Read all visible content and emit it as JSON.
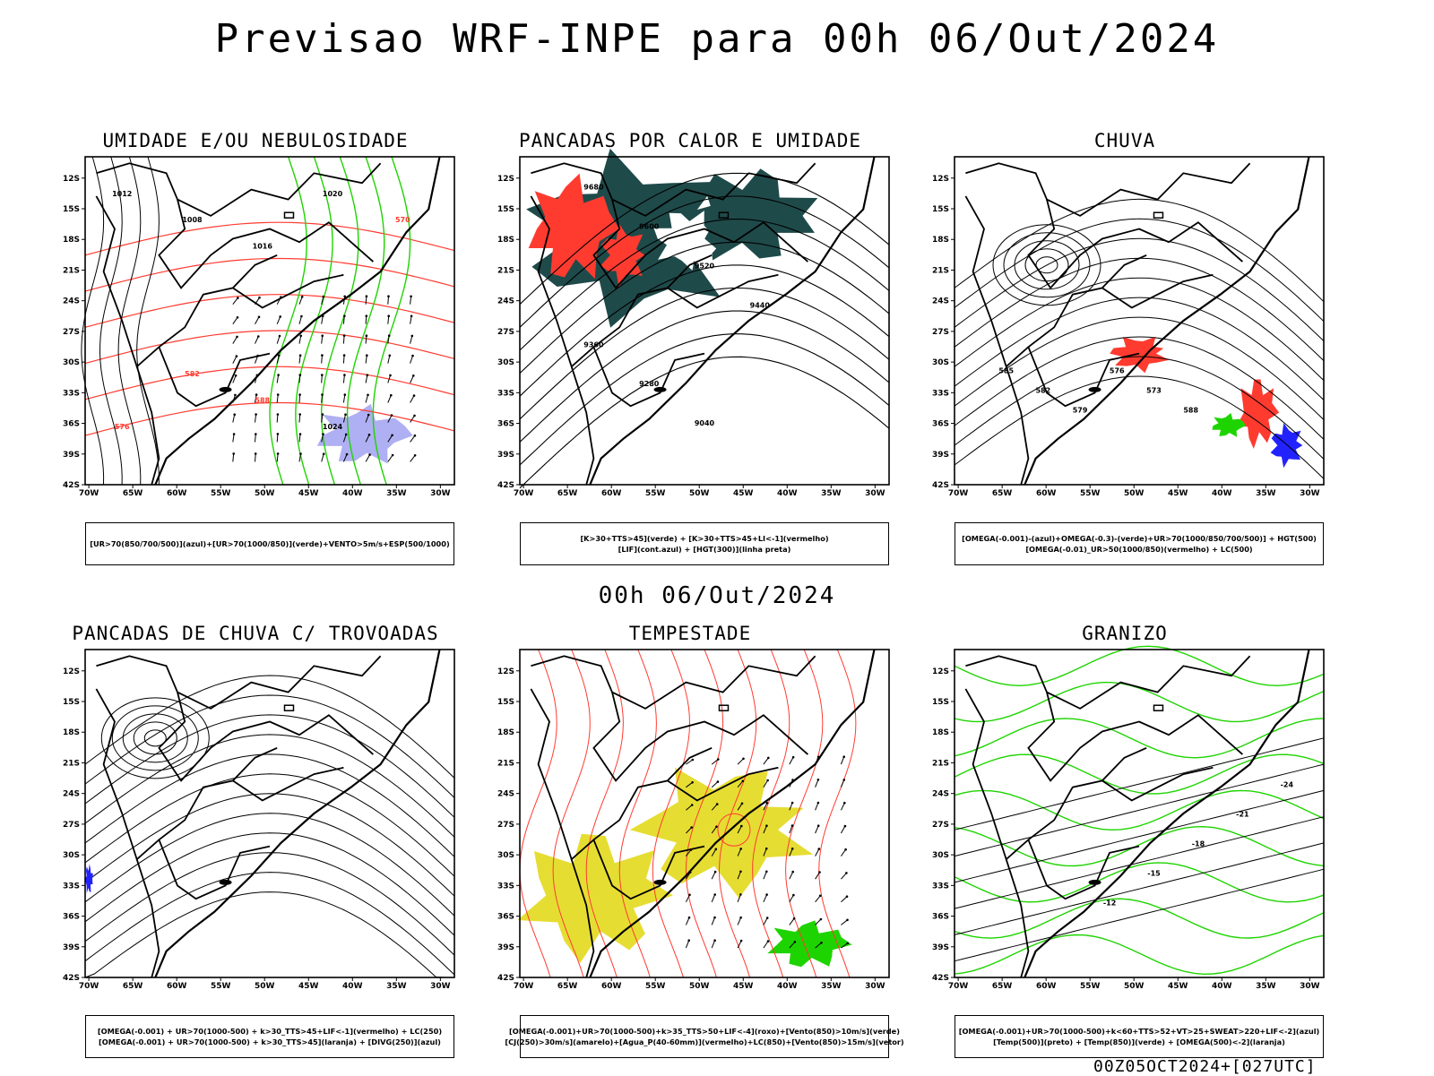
{
  "header": {
    "title": "Previsao WRF-INPE  para 00h 06/Out/2024"
  },
  "mid_date": "00h 06/Out/2024",
  "footer": {
    "code": "00Z05OCT2024+[027UTC]"
  },
  "axes": {
    "lat_labels": [
      "12S",
      "15S",
      "18S",
      "21S",
      "24S",
      "27S",
      "30S",
      "33S",
      "36S",
      "39S",
      "42S"
    ],
    "lon_labels": [
      "70W",
      "65W",
      "60W",
      "55W",
      "50W",
      "45W",
      "40W",
      "35W",
      "30W"
    ]
  },
  "colors": {
    "red": "#ff3b30",
    "green": "#1ed400",
    "blue": "#2222ff",
    "teal": "#1f4a4a",
    "yellow": "#e6dd33",
    "purple": "#9b9bf0",
    "black": "#000000"
  },
  "panels": [
    {
      "title": "UMIDADE E/OU NEBULOSIDADE",
      "legend": [
        "[UR>70(850/700/500)](azul)+[UR>70(1000/850)](verde)+VENTO>5m/s+ESP(500/1000)"
      ],
      "labels": [
        "1012",
        "1008",
        "1016",
        "1020",
        "570",
        "576",
        "582",
        "588",
        "1024"
      ]
    },
    {
      "title": "PANCADAS POR CALOR E UMIDADE",
      "legend": [
        "[K>30+TTS>45](verde) + [K>30+TTS>45+LI<-1](vermelho)",
        "[LIF](cont.azul) + [HGT(300)](linha preta)"
      ],
      "labels": [
        "9680",
        "9600",
        "9520",
        "9440",
        "9360",
        "9280",
        "9040"
      ]
    },
    {
      "title": "CHUVA",
      "legend": [
        "[OMEGA(-0.001)-(azul)+OMEGA(-0.3)-(verde)+UR>70(1000/850/700/500)] + HGT(500)",
        "[OMEGA(-0.01)_UR>50(1000/850)(vermelho) + LC(500)"
      ],
      "labels": [
        "585",
        "582",
        "579",
        "576",
        "573",
        "588"
      ]
    },
    {
      "title": "PANCADAS DE CHUVA C/ TROVOADAS",
      "legend": [
        "[OMEGA(-0.001) + UR>70(1000-500) + k>30_TTS>45+LIF<-1](vermelho) + LC(250)",
        "[OMEGA(-0.001) + UR>70(1000-500) + k>30_TTS>45](laranja) + [DIVG(250)](azul)"
      ],
      "labels": []
    },
    {
      "title": "TEMPESTADE",
      "legend": [
        "[OMEGA(-0.001)+UR>70(1000-500)+k>35_TTS>50+LIF<-4](roxo)+[Vento(850)>10m/s](verde)",
        "[CJ(250)>30m/s](amarelo)+[Agua_P(40-60mm)](vermelho)+LC(850)+[Vento(850)>15m/s](vetor)"
      ],
      "labels": []
    },
    {
      "title": "GRANIZO",
      "legend": [
        "[OMEGA(-0.001)+UR>70(1000-500)+k<60+TTS>52+VT>25+SWEAT>220+LIF<-2](azul)",
        "[Temp(500)](preto) + [Temp(850)](verde) + [OMEGA(500)<-2](laranja)"
      ],
      "labels": [
        "-12",
        "-15",
        "-18",
        "-21",
        "-24"
      ]
    }
  ]
}
